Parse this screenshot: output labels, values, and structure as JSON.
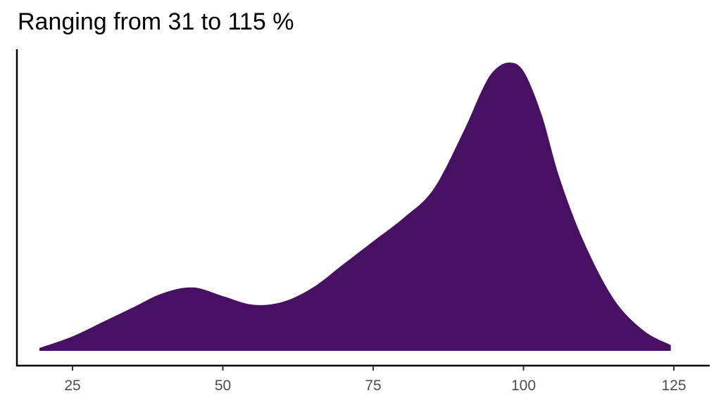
{
  "chart_data": {
    "type": "area",
    "subtype": "density",
    "title": "Ranging from 31 to 115 %",
    "xlabel": "",
    "ylabel": "",
    "xlim": [
      17.5,
      132
    ],
    "x_ticks": [
      25,
      50,
      75,
      100,
      125
    ],
    "y_ticks": [],
    "grid": false,
    "legend": null,
    "fill_color": "#471063",
    "series": [
      {
        "name": "density",
        "x": [
          19.5,
          25,
          30,
          35,
          40,
          45,
          50,
          55,
          60,
          65,
          70,
          75,
          80,
          85,
          90,
          93,
          95,
          97.5,
          100,
          103,
          106,
          110,
          115,
          120,
          124.5
        ],
        "y": [
          0.01,
          0.05,
          0.1,
          0.15,
          0.2,
          0.22,
          0.19,
          0.16,
          0.17,
          0.22,
          0.3,
          0.38,
          0.46,
          0.56,
          0.76,
          0.9,
          0.97,
          1.0,
          0.97,
          0.82,
          0.6,
          0.38,
          0.18,
          0.07,
          0.02
        ]
      }
    ]
  }
}
